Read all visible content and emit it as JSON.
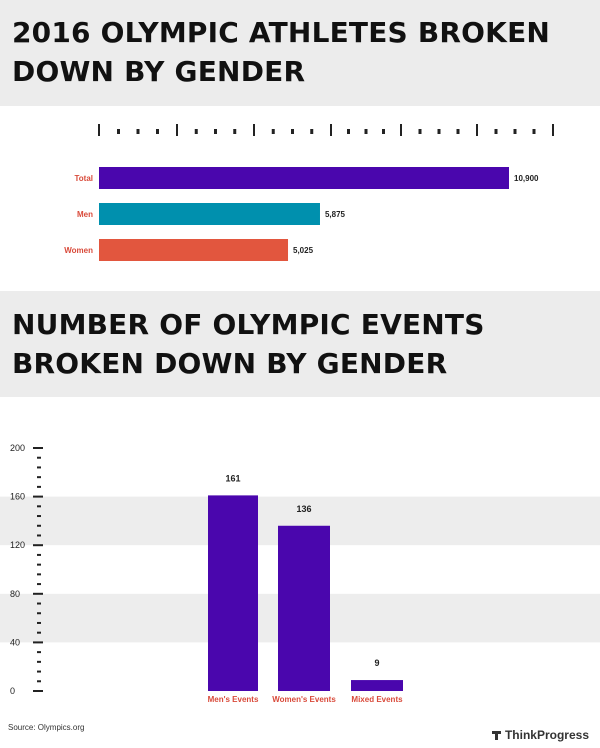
{
  "titles": {
    "athletes": "2016 OLYMPIC ATHLETES BROKEN DOWN BY GENDER",
    "events": "NUMBER OF OLYMPIC EVENTS BROKEN DOWN BY GENDER"
  },
  "footer": {
    "source": "Source: Olympics.org",
    "brand": "ThinkProgress",
    "brand_icon": "thinkprogress-logo-icon"
  },
  "colors": {
    "purple": "#4a06ad",
    "teal": "#0090ae",
    "orange": "#e2563e",
    "label_red": "#d94a3a"
  },
  "chart_data": [
    {
      "type": "bar",
      "orientation": "horizontal",
      "categories": [
        "Total",
        "Men",
        "Women"
      ],
      "values": [
        10900,
        5875,
        5025
      ],
      "value_labels": [
        "10,900",
        "5,875",
        "5,025"
      ],
      "colors": [
        "#4a06ad",
        "#0090ae",
        "#e2563e"
      ],
      "xlim": [
        0,
        12400
      ],
      "title": "2016 OLYMPIC ATHLETES BROKEN DOWN BY GENDER"
    },
    {
      "type": "bar",
      "orientation": "vertical",
      "categories": [
        "Men's Events",
        "Women's Events",
        "Mixed Events"
      ],
      "values": [
        161,
        136,
        9
      ],
      "ylim": [
        0,
        200
      ],
      "yticks": [
        "0",
        "40",
        "80",
        "120",
        "160",
        "200"
      ],
      "color": "#4a06ad",
      "grid": "alternating bands",
      "title": "NUMBER OF OLYMPIC EVENTS BROKEN DOWN BY GENDER"
    }
  ]
}
